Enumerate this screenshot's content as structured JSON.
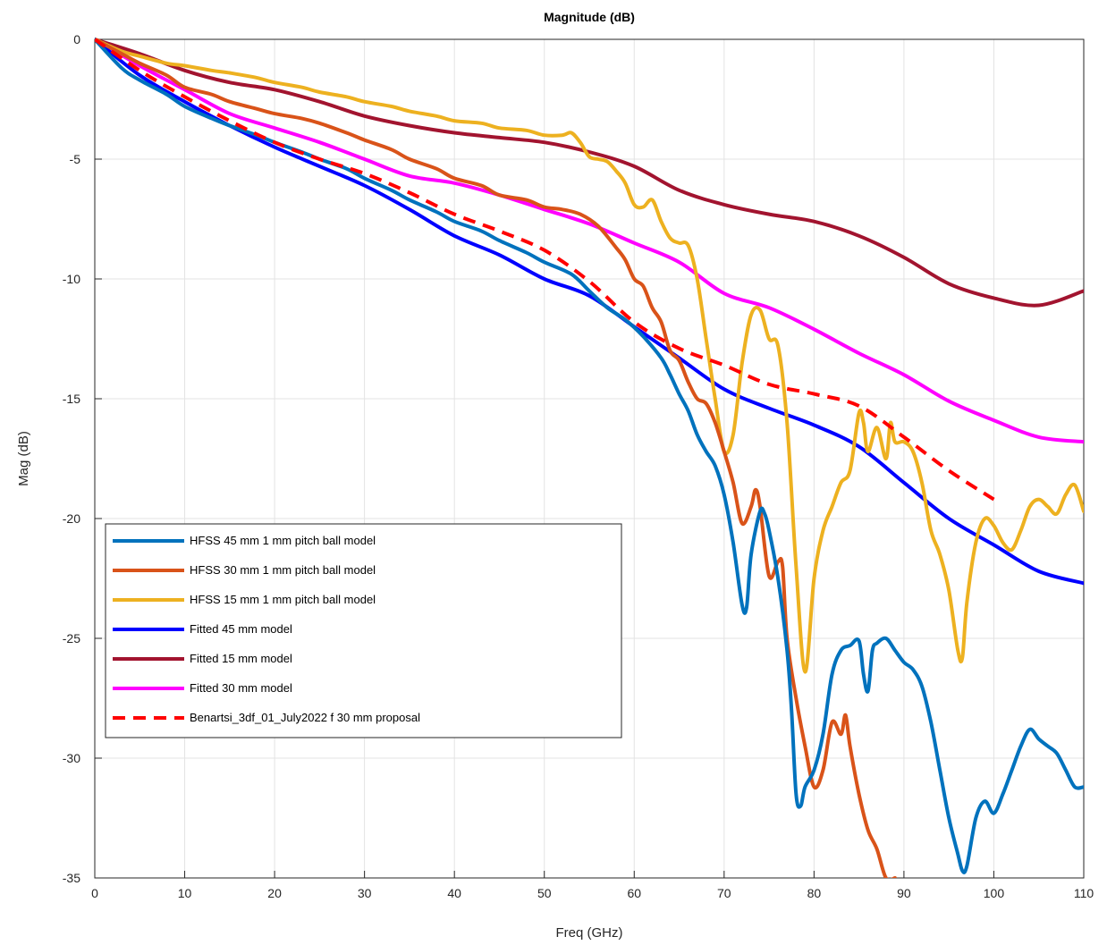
{
  "chart_data": {
    "type": "line",
    "title": "Magnitude (dB)",
    "xlabel": "Freq (GHz)",
    "ylabel": "Mag (dB)",
    "xlim": [
      0,
      110
    ],
    "ylim": [
      -35,
      0
    ],
    "xticks": [
      0,
      10,
      20,
      30,
      40,
      50,
      60,
      70,
      80,
      90,
      100,
      110
    ],
    "yticks": [
      0,
      -5,
      -10,
      -15,
      -20,
      -25,
      -30,
      -35
    ],
    "grid": true,
    "legend_position": "left",
    "series": [
      {
        "name": "HFSS 45 mm 1 mm pitch ball model",
        "color": "#0072BD",
        "style": "solid",
        "points": [
          [
            0,
            0
          ],
          [
            3,
            -1.2
          ],
          [
            5,
            -1.7
          ],
          [
            8,
            -2.3
          ],
          [
            10,
            -2.8
          ],
          [
            13,
            -3.3
          ],
          [
            15,
            -3.6
          ],
          [
            18,
            -4.0
          ],
          [
            20,
            -4.3
          ],
          [
            23,
            -4.7
          ],
          [
            25,
            -5.0
          ],
          [
            28,
            -5.4
          ],
          [
            30,
            -5.8
          ],
          [
            33,
            -6.3
          ],
          [
            35,
            -6.7
          ],
          [
            38,
            -7.2
          ],
          [
            40,
            -7.6
          ],
          [
            43,
            -8.0
          ],
          [
            45,
            -8.4
          ],
          [
            48,
            -8.9
          ],
          [
            50,
            -9.3
          ],
          [
            53,
            -9.8
          ],
          [
            55,
            -10.5
          ],
          [
            57,
            -11.2
          ],
          [
            59,
            -11.7
          ],
          [
            61,
            -12.4
          ],
          [
            63,
            -13.3
          ],
          [
            64,
            -14.0
          ],
          [
            65,
            -14.8
          ],
          [
            66,
            -15.5
          ],
          [
            67,
            -16.5
          ],
          [
            68,
            -17.2
          ],
          [
            69,
            -17.8
          ],
          [
            70,
            -19.0
          ],
          [
            71,
            -21.0
          ],
          [
            72,
            -23.6
          ],
          [
            72.5,
            -23.7
          ],
          [
            73,
            -21.5
          ],
          [
            74,
            -19.7
          ],
          [
            74.5,
            -19.8
          ],
          [
            75,
            -20.5
          ],
          [
            76,
            -22.5
          ],
          [
            77,
            -25.5
          ],
          [
            77.5,
            -28.0
          ],
          [
            78,
            -31.5
          ],
          [
            78.5,
            -32.0
          ],
          [
            79,
            -31.2
          ],
          [
            80,
            -30.5
          ],
          [
            81,
            -29.0
          ],
          [
            82,
            -26.5
          ],
          [
            83,
            -25.5
          ],
          [
            84,
            -25.3
          ],
          [
            85,
            -25.1
          ],
          [
            85.5,
            -26.5
          ],
          [
            86,
            -27.2
          ],
          [
            86.5,
            -25.5
          ],
          [
            87,
            -25.2
          ],
          [
            88,
            -25.0
          ],
          [
            89,
            -25.5
          ],
          [
            90,
            -26.0
          ],
          [
            91,
            -26.3
          ],
          [
            92,
            -27.0
          ],
          [
            93,
            -28.5
          ],
          [
            94,
            -30.5
          ],
          [
            95,
            -32.5
          ],
          [
            96,
            -34.0
          ],
          [
            96.5,
            -34.7
          ],
          [
            97,
            -34.5
          ],
          [
            98,
            -32.5
          ],
          [
            99,
            -31.8
          ],
          [
            100,
            -32.3
          ],
          [
            101,
            -31.5
          ],
          [
            102,
            -30.5
          ],
          [
            103,
            -29.5
          ],
          [
            104,
            -28.8
          ],
          [
            105,
            -29.2
          ],
          [
            106,
            -29.5
          ],
          [
            107,
            -29.8
          ],
          [
            108,
            -30.5
          ],
          [
            109,
            -31.2
          ],
          [
            110,
            -31.2
          ]
        ]
      },
      {
        "name": "HFSS 30 mm 1 mm pitch ball model",
        "color": "#D95319",
        "style": "solid",
        "points": [
          [
            0,
            0
          ],
          [
            3,
            -0.6
          ],
          [
            5,
            -1.0
          ],
          [
            8,
            -1.5
          ],
          [
            10,
            -2.0
          ],
          [
            13,
            -2.3
          ],
          [
            15,
            -2.6
          ],
          [
            18,
            -2.9
          ],
          [
            20,
            -3.1
          ],
          [
            23,
            -3.3
          ],
          [
            25,
            -3.5
          ],
          [
            28,
            -3.9
          ],
          [
            30,
            -4.2
          ],
          [
            33,
            -4.6
          ],
          [
            35,
            -5.0
          ],
          [
            38,
            -5.4
          ],
          [
            40,
            -5.8
          ],
          [
            43,
            -6.1
          ],
          [
            45,
            -6.5
          ],
          [
            48,
            -6.7
          ],
          [
            50,
            -7.0
          ],
          [
            52,
            -7.1
          ],
          [
            54,
            -7.3
          ],
          [
            56,
            -7.8
          ],
          [
            58,
            -8.7
          ],
          [
            59,
            -9.2
          ],
          [
            60,
            -10.0
          ],
          [
            61,
            -10.3
          ],
          [
            62,
            -11.2
          ],
          [
            63,
            -11.8
          ],
          [
            64,
            -13.0
          ],
          [
            65,
            -13.4
          ],
          [
            66,
            -14.3
          ],
          [
            67,
            -15.0
          ],
          [
            68,
            -15.2
          ],
          [
            69,
            -16.0
          ],
          [
            70,
            -17.2
          ],
          [
            71,
            -18.5
          ],
          [
            72,
            -20.2
          ],
          [
            73,
            -19.5
          ],
          [
            73.5,
            -18.8
          ],
          [
            74,
            -19.5
          ],
          [
            75,
            -22.4
          ],
          [
            76,
            -21.8
          ],
          [
            76.5,
            -22.0
          ],
          [
            77,
            -25.0
          ],
          [
            78,
            -27.5
          ],
          [
            79,
            -29.5
          ],
          [
            80,
            -31.2
          ],
          [
            81,
            -30.5
          ],
          [
            82,
            -28.5
          ],
          [
            83,
            -29.0
          ],
          [
            83.5,
            -28.2
          ],
          [
            84,
            -29.5
          ],
          [
            85,
            -31.5
          ],
          [
            86,
            -33.0
          ],
          [
            87,
            -33.8
          ],
          [
            88,
            -35.0
          ],
          [
            89,
            -35.0
          ]
        ]
      },
      {
        "name": "HFSS 15 mm 1 mm pitch ball model",
        "color": "#EDB120",
        "style": "solid",
        "points": [
          [
            0,
            0
          ],
          [
            3,
            -0.5
          ],
          [
            5,
            -0.7
          ],
          [
            8,
            -1.0
          ],
          [
            10,
            -1.1
          ],
          [
            13,
            -1.3
          ],
          [
            15,
            -1.4
          ],
          [
            18,
            -1.6
          ],
          [
            20,
            -1.8
          ],
          [
            23,
            -2.0
          ],
          [
            25,
            -2.2
          ],
          [
            28,
            -2.4
          ],
          [
            30,
            -2.6
          ],
          [
            33,
            -2.8
          ],
          [
            35,
            -3.0
          ],
          [
            38,
            -3.2
          ],
          [
            40,
            -3.4
          ],
          [
            43,
            -3.5
          ],
          [
            45,
            -3.7
          ],
          [
            48,
            -3.8
          ],
          [
            50,
            -4.0
          ],
          [
            52,
            -4.0
          ],
          [
            53,
            -3.9
          ],
          [
            54,
            -4.3
          ],
          [
            55,
            -4.9
          ],
          [
            56,
            -5.0
          ],
          [
            57,
            -5.1
          ],
          [
            58,
            -5.5
          ],
          [
            59,
            -6.0
          ],
          [
            60,
            -6.9
          ],
          [
            61,
            -7.0
          ],
          [
            62,
            -6.7
          ],
          [
            63,
            -7.6
          ],
          [
            64,
            -8.3
          ],
          [
            65,
            -8.5
          ],
          [
            66,
            -8.6
          ],
          [
            67,
            -10.0
          ],
          [
            68,
            -12.5
          ],
          [
            69,
            -15.0
          ],
          [
            70,
            -17.2
          ],
          [
            71,
            -16.5
          ],
          [
            72,
            -13.5
          ],
          [
            73,
            -11.5
          ],
          [
            74,
            -11.3
          ],
          [
            75,
            -12.5
          ],
          [
            76,
            -12.8
          ],
          [
            77,
            -16.0
          ],
          [
            78,
            -22.0
          ],
          [
            79,
            -26.4
          ],
          [
            80,
            -22.5
          ],
          [
            81,
            -20.5
          ],
          [
            82,
            -19.5
          ],
          [
            83,
            -18.5
          ],
          [
            84,
            -18.0
          ],
          [
            85,
            -15.6
          ],
          [
            85.5,
            -16.0
          ],
          [
            86,
            -17.2
          ],
          [
            87,
            -16.2
          ],
          [
            88,
            -17.5
          ],
          [
            88.5,
            -16.0
          ],
          [
            89,
            -16.8
          ],
          [
            90,
            -16.8
          ],
          [
            91,
            -17.2
          ],
          [
            92,
            -18.5
          ],
          [
            93,
            -20.5
          ],
          [
            94,
            -21.5
          ],
          [
            95,
            -23.0
          ],
          [
            96,
            -25.5
          ],
          [
            96.5,
            -25.8
          ],
          [
            97,
            -23.5
          ],
          [
            98,
            -21.0
          ],
          [
            99,
            -20.0
          ],
          [
            100,
            -20.3
          ],
          [
            101,
            -21.0
          ],
          [
            102,
            -21.3
          ],
          [
            103,
            -20.5
          ],
          [
            104,
            -19.5
          ],
          [
            105,
            -19.2
          ],
          [
            106,
            -19.5
          ],
          [
            107,
            -19.8
          ],
          [
            108,
            -19.0
          ],
          [
            109,
            -18.6
          ],
          [
            110,
            -19.7
          ]
        ]
      },
      {
        "name": "Fitted 45 mm model",
        "color": "#0000FF",
        "style": "solid",
        "points": [
          [
            0,
            0
          ],
          [
            5,
            -1.5
          ],
          [
            10,
            -2.6
          ],
          [
            15,
            -3.6
          ],
          [
            20,
            -4.5
          ],
          [
            25,
            -5.3
          ],
          [
            30,
            -6.1
          ],
          [
            35,
            -7.1
          ],
          [
            40,
            -8.2
          ],
          [
            45,
            -9.0
          ],
          [
            50,
            -10.0
          ],
          [
            55,
            -10.7
          ],
          [
            60,
            -12.0
          ],
          [
            65,
            -13.3
          ],
          [
            70,
            -14.6
          ],
          [
            75,
            -15.4
          ],
          [
            80,
            -16.1
          ],
          [
            85,
            -17.0
          ],
          [
            90,
            -18.5
          ],
          [
            95,
            -20.0
          ],
          [
            100,
            -21.1
          ],
          [
            105,
            -22.2
          ],
          [
            110,
            -22.7
          ]
        ]
      },
      {
        "name": "Fitted 15 mm model",
        "color": "#A2142F",
        "style": "solid",
        "points": [
          [
            0,
            0
          ],
          [
            5,
            -0.6
          ],
          [
            10,
            -1.3
          ],
          [
            15,
            -1.8
          ],
          [
            20,
            -2.1
          ],
          [
            25,
            -2.6
          ],
          [
            30,
            -3.2
          ],
          [
            35,
            -3.6
          ],
          [
            40,
            -3.9
          ],
          [
            45,
            -4.1
          ],
          [
            50,
            -4.3
          ],
          [
            55,
            -4.7
          ],
          [
            60,
            -5.3
          ],
          [
            65,
            -6.3
          ],
          [
            70,
            -6.9
          ],
          [
            75,
            -7.3
          ],
          [
            80,
            -7.6
          ],
          [
            85,
            -8.2
          ],
          [
            90,
            -9.1
          ],
          [
            95,
            -10.2
          ],
          [
            100,
            -10.8
          ],
          [
            105,
            -11.1
          ],
          [
            110,
            -10.5
          ]
        ]
      },
      {
        "name": "Fitted 30 mm model",
        "color": "#FF00FF",
        "style": "solid",
        "points": [
          [
            0,
            0
          ],
          [
            5,
            -1.1
          ],
          [
            10,
            -2.1
          ],
          [
            15,
            -3.1
          ],
          [
            20,
            -3.7
          ],
          [
            25,
            -4.3
          ],
          [
            30,
            -5.0
          ],
          [
            35,
            -5.7
          ],
          [
            40,
            -6.0
          ],
          [
            45,
            -6.5
          ],
          [
            50,
            -7.1
          ],
          [
            55,
            -7.7
          ],
          [
            60,
            -8.5
          ],
          [
            65,
            -9.3
          ],
          [
            70,
            -10.6
          ],
          [
            75,
            -11.2
          ],
          [
            80,
            -12.1
          ],
          [
            85,
            -13.1
          ],
          [
            90,
            -14.0
          ],
          [
            95,
            -15.1
          ],
          [
            100,
            -15.9
          ],
          [
            105,
            -16.6
          ],
          [
            110,
            -16.8
          ]
        ]
      },
      {
        "name": "Benartsi_3df_01_July2022 f 30 mm proposal",
        "color": "#FF0000",
        "style": "dashed",
        "points": [
          [
            0,
            0
          ],
          [
            5,
            -1.3
          ],
          [
            10,
            -2.4
          ],
          [
            15,
            -3.4
          ],
          [
            20,
            -4.3
          ],
          [
            25,
            -5.0
          ],
          [
            30,
            -5.6
          ],
          [
            35,
            -6.4
          ],
          [
            40,
            -7.3
          ],
          [
            45,
            -8.0
          ],
          [
            50,
            -8.8
          ],
          [
            55,
            -10.1
          ],
          [
            60,
            -11.8
          ],
          [
            65,
            -12.9
          ],
          [
            70,
            -13.6
          ],
          [
            75,
            -14.4
          ],
          [
            80,
            -14.8
          ],
          [
            85,
            -15.3
          ],
          [
            90,
            -16.6
          ],
          [
            95,
            -18.0
          ],
          [
            100,
            -19.2
          ]
        ]
      }
    ]
  }
}
